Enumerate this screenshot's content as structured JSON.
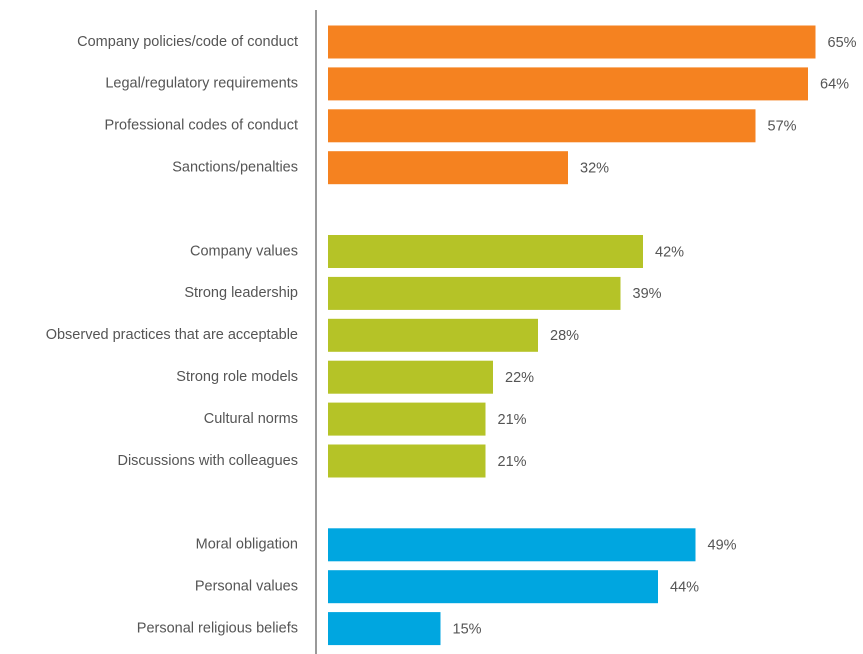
{
  "chart_data": {
    "type": "bar",
    "orientation": "horizontal",
    "groups": [
      {
        "color": "#f58220",
        "categories": [
          "Company policies/code of conduct",
          "Legal/regulatory requirements",
          "Professional codes of conduct",
          "Sanctions/penalties"
        ],
        "values": [
          65,
          64,
          57,
          32
        ],
        "value_labels": [
          "65%",
          "64%",
          "57%",
          "32%"
        ]
      },
      {
        "color": "#b5c327",
        "categories": [
          "Company values",
          "Strong leadership",
          "Observed practices that are acceptable",
          "Strong role models",
          "Cultural norms",
          "Discussions with colleagues"
        ],
        "values": [
          42,
          39,
          28,
          22,
          21,
          21
        ],
        "value_labels": [
          "42%",
          "39%",
          "28%",
          "22%",
          "21%",
          "21%"
        ]
      },
      {
        "color": "#00a6e0",
        "categories": [
          "Moral obligation",
          "Personal values",
          "Personal religious beliefs"
        ],
        "values": [
          49,
          44,
          15
        ],
        "value_labels": [
          "49%",
          "44%",
          "15%"
        ]
      }
    ]
  }
}
